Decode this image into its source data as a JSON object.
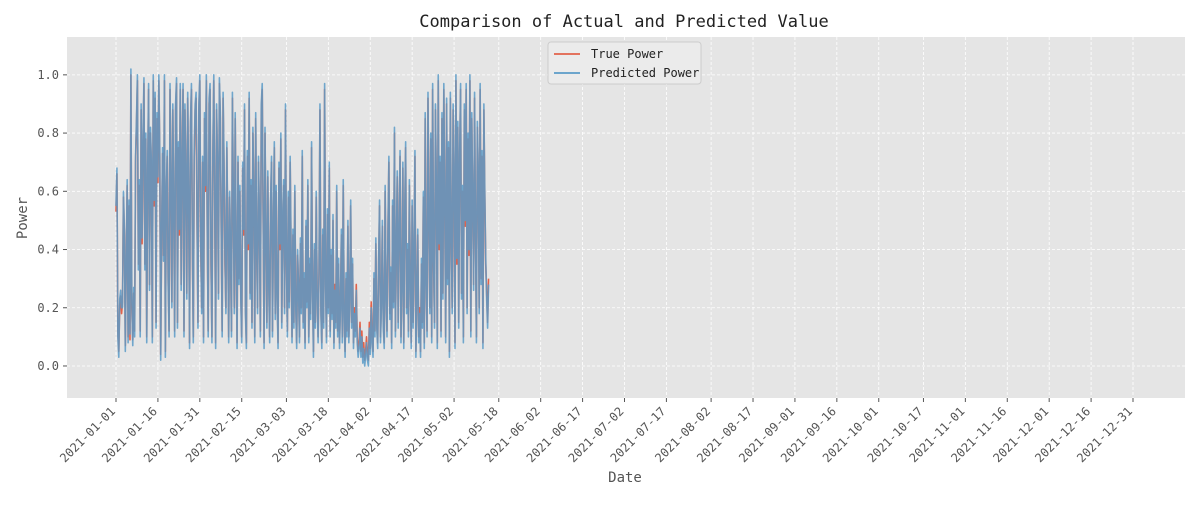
{
  "chart_data": {
    "type": "line",
    "title": "Comparison of Actual and Predicted Value",
    "xlabel": "Date",
    "ylabel": "Power",
    "xlim": [
      "2021-01-01",
      "2021-12-31"
    ],
    "ylim": [
      -0.11,
      1.13
    ],
    "grid": true,
    "legend_position": "top-center",
    "x_ticks": [
      "2021-01-01",
      "2021-01-16",
      "2021-01-31",
      "2021-02-15",
      "2021-03-03",
      "2021-03-18",
      "2021-04-02",
      "2021-04-17",
      "2021-05-02",
      "2021-05-18",
      "2021-06-02",
      "2021-06-17",
      "2021-07-02",
      "2021-07-17",
      "2021-08-02",
      "2021-08-17",
      "2021-09-01",
      "2021-09-16",
      "2021-10-01",
      "2021-10-17",
      "2021-11-01",
      "2021-11-16",
      "2021-12-01",
      "2021-12-16",
      "2021-12-31"
    ],
    "y_ticks": [
      "0.0",
      "0.2",
      "0.4",
      "0.6",
      "0.8",
      "1.0"
    ],
    "y_tick_values": [
      0.0,
      0.2,
      0.4,
      0.6,
      0.8,
      1.0
    ],
    "samples_per_day": 3,
    "series": [
      {
        "name": "True Power",
        "color": "#e2624a",
        "values": [
          0.53,
          0.66,
          0.12,
          0.05,
          0.21,
          0.24,
          0.18,
          0.22,
          0.58,
          0.45,
          0.07,
          0.35,
          0.62,
          0.1,
          0.55,
          0.09,
          1.0,
          0.2,
          0.09,
          0.25,
          0.12,
          0.7,
          0.83,
          0.98,
          0.35,
          0.62,
          0.12,
          0.88,
          0.42,
          0.75,
          0.97,
          0.35,
          0.78,
          0.1,
          0.65,
          0.95,
          0.28,
          0.8,
          0.68,
          0.1,
          0.98,
          0.55,
          0.92,
          0.15,
          0.85,
          0.63,
          0.98,
          0.72,
          0.04,
          0.45,
          0.73,
          0.38,
          0.98,
          0.05,
          0.58,
          0.72,
          0.3,
          0.12,
          0.95,
          0.62,
          0.22,
          0.88,
          0.54,
          0.12,
          0.88,
          0.97,
          0.15,
          0.75,
          0.45,
          0.95,
          0.28,
          0.7,
          0.95,
          0.12,
          0.88,
          0.65,
          0.25,
          0.92,
          0.58,
          0.08,
          0.82,
          0.95,
          0.4,
          0.1,
          0.72,
          0.88,
          0.92,
          0.5,
          0.15,
          0.88,
          0.98,
          0.4,
          0.2,
          0.7,
          0.1,
          0.85,
          0.6,
          0.98,
          0.45,
          0.12,
          0.9,
          0.95,
          0.35,
          0.1,
          0.72,
          0.98,
          0.55,
          0.08,
          0.88,
          0.68,
          0.25,
          0.97,
          0.85,
          0.45,
          0.12,
          0.92,
          0.68,
          0.35,
          0.2,
          0.75,
          0.45,
          0.1,
          0.58,
          0.38,
          0.12,
          0.92,
          0.55,
          0.2,
          0.85,
          0.38,
          0.08,
          0.7,
          0.3,
          0.6,
          0.25,
          0.1,
          0.68,
          0.45,
          0.88,
          0.2,
          0.08,
          0.72,
          0.4,
          0.92,
          0.25,
          0.62,
          0.15,
          0.8,
          0.58,
          0.1,
          0.85,
          0.4,
          0.2,
          0.7,
          0.5,
          0.12,
          0.88,
          0.95,
          0.5,
          0.08,
          0.8,
          0.42,
          0.15,
          0.65,
          0.3,
          0.1,
          0.55,
          0.7,
          0.12,
          0.45,
          0.75,
          0.18,
          0.6,
          0.25,
          0.08,
          0.68,
          0.4,
          0.78,
          0.15,
          0.5,
          0.62,
          0.2,
          0.88,
          0.35,
          0.12,
          0.58,
          0.22,
          0.7,
          0.38,
          0.1,
          0.45,
          0.15,
          0.6,
          0.22,
          0.08,
          0.38,
          0.28,
          0.1,
          0.42,
          0.2,
          0.72,
          0.15,
          0.3,
          0.08,
          0.48,
          0.22,
          0.62,
          0.1,
          0.35,
          0.18,
          0.75,
          0.28,
          0.05,
          0.4,
          0.15,
          0.58,
          0.25,
          0.1,
          0.32,
          0.88,
          0.2,
          0.08,
          0.45,
          0.15,
          0.95,
          0.3,
          0.1,
          0.52,
          0.2,
          0.68,
          0.12,
          0.38,
          0.18,
          0.5,
          0.08,
          0.28,
          0.15,
          0.6,
          0.12,
          0.35,
          0.08,
          0.22,
          0.45,
          0.1,
          0.62,
          0.18,
          0.05,
          0.3,
          0.12,
          0.48,
          0.1,
          0.25,
          0.55,
          0.15,
          0.35,
          0.08,
          0.2,
          0.12,
          0.28,
          0.1,
          0.05,
          0.08,
          0.15,
          0.05,
          0.12,
          0.03,
          0.08,
          0.02,
          0.05,
          0.1,
          0.04,
          0.02,
          0.15,
          0.06,
          0.22,
          0.1,
          0.05,
          0.3,
          0.12,
          0.42,
          0.15,
          0.08,
          0.35,
          0.55,
          0.1,
          0.22,
          0.48,
          0.15,
          0.08,
          0.6,
          0.25,
          0.12,
          0.45,
          0.7,
          0.18,
          0.32,
          0.08,
          0.55,
          0.22,
          0.8,
          0.12,
          0.38,
          0.65,
          0.15,
          0.45,
          0.72,
          0.1,
          0.28,
          0.68,
          0.08,
          0.5,
          0.75,
          0.2,
          0.4,
          0.12,
          0.62,
          0.3,
          0.08,
          0.55,
          0.15,
          0.38,
          0.72,
          0.05,
          0.25,
          0.45,
          0.1,
          0.2,
          0.05,
          0.35,
          0.15,
          0.58,
          0.08,
          0.85,
          0.3,
          0.12,
          0.92,
          0.5,
          0.2,
          0.78,
          0.1,
          0.95,
          0.35,
          0.15,
          0.88,
          0.6,
          0.08,
          0.98,
          0.4,
          0.7,
          0.12,
          0.85,
          0.25,
          0.95,
          0.55,
          0.1,
          0.9,
          0.3,
          0.75,
          0.05,
          0.92,
          0.45,
          0.2,
          0.88,
          0.65,
          0.08,
          0.98,
          0.35,
          0.82,
          0.15,
          0.72,
          0.95,
          0.25,
          0.6,
          0.1,
          0.88,
          0.48,
          0.95,
          0.2,
          0.78,
          0.38,
          0.98,
          0.12,
          0.85,
          0.55,
          0.28,
          0.92,
          0.45,
          0.1,
          0.82,
          0.65,
          0.2,
          0.95,
          0.3,
          0.72,
          0.08,
          0.88,
          0.58,
          0.35,
          0.25,
          0.15,
          0.3
        ]
      },
      {
        "name": "Predicted Power",
        "color": "#5a9bc8",
        "values": [
          0.55,
          0.68,
          0.1,
          0.03,
          0.23,
          0.26,
          0.2,
          0.2,
          0.6,
          0.47,
          0.05,
          0.37,
          0.64,
          0.08,
          0.57,
          0.11,
          1.02,
          0.22,
          0.07,
          0.27,
          0.1,
          0.72,
          0.85,
          1.0,
          0.33,
          0.64,
          0.1,
          0.9,
          0.44,
          0.77,
          0.99,
          0.33,
          0.8,
          0.08,
          0.67,
          0.97,
          0.26,
          0.82,
          0.7,
          0.08,
          1.0,
          0.57,
          0.94,
          0.13,
          0.87,
          0.65,
          1.0,
          0.74,
          0.02,
          0.47,
          0.75,
          0.36,
          1.0,
          0.03,
          0.6,
          0.74,
          0.28,
          0.1,
          0.97,
          0.64,
          0.2,
          0.9,
          0.56,
          0.1,
          0.9,
          0.99,
          0.13,
          0.77,
          0.47,
          0.97,
          0.26,
          0.72,
          0.97,
          0.1,
          0.9,
          0.67,
          0.23,
          0.94,
          0.6,
          0.06,
          0.84,
          0.97,
          0.42,
          0.08,
          0.74,
          0.9,
          0.94,
          0.52,
          0.13,
          0.9,
          1.0,
          0.42,
          0.18,
          0.72,
          0.08,
          0.87,
          0.62,
          1.0,
          0.47,
          0.1,
          0.92,
          0.97,
          0.37,
          0.08,
          0.74,
          1.0,
          0.57,
          0.06,
          0.9,
          0.7,
          0.23,
          0.99,
          0.87,
          0.47,
          0.1,
          0.94,
          0.7,
          0.37,
          0.18,
          0.77,
          0.47,
          0.08,
          0.6,
          0.4,
          0.1,
          0.94,
          0.57,
          0.18,
          0.87,
          0.4,
          0.06,
          0.72,
          0.28,
          0.62,
          0.23,
          0.08,
          0.7,
          0.47,
          0.9,
          0.18,
          0.06,
          0.74,
          0.42,
          0.94,
          0.23,
          0.64,
          0.13,
          0.82,
          0.6,
          0.08,
          0.87,
          0.42,
          0.18,
          0.72,
          0.52,
          0.1,
          0.9,
          0.97,
          0.52,
          0.06,
          0.82,
          0.44,
          0.13,
          0.67,
          0.28,
          0.08,
          0.57,
          0.72,
          0.1,
          0.47,
          0.77,
          0.16,
          0.62,
          0.23,
          0.06,
          0.7,
          0.42,
          0.8,
          0.13,
          0.52,
          0.64,
          0.18,
          0.9,
          0.37,
          0.1,
          0.6,
          0.2,
          0.72,
          0.4,
          0.08,
          0.47,
          0.13,
          0.62,
          0.2,
          0.06,
          0.4,
          0.26,
          0.08,
          0.44,
          0.18,
          0.74,
          0.13,
          0.32,
          0.06,
          0.5,
          0.2,
          0.64,
          0.08,
          0.37,
          0.16,
          0.77,
          0.26,
          0.03,
          0.42,
          0.13,
          0.6,
          0.23,
          0.08,
          0.34,
          0.9,
          0.18,
          0.06,
          0.47,
          0.13,
          0.97,
          0.28,
          0.08,
          0.54,
          0.18,
          0.7,
          0.1,
          0.4,
          0.16,
          0.52,
          0.06,
          0.26,
          0.13,
          0.62,
          0.1,
          0.37,
          0.06,
          0.2,
          0.47,
          0.08,
          0.64,
          0.16,
          0.03,
          0.32,
          0.1,
          0.5,
          0.08,
          0.23,
          0.57,
          0.13,
          0.37,
          0.06,
          0.18,
          0.1,
          0.26,
          0.08,
          0.03,
          0.06,
          0.13,
          0.03,
          0.1,
          0.01,
          0.06,
          0.0,
          0.03,
          0.08,
          0.02,
          0.0,
          0.13,
          0.04,
          0.2,
          0.08,
          0.03,
          0.32,
          0.1,
          0.44,
          0.13,
          0.06,
          0.37,
          0.57,
          0.08,
          0.2,
          0.5,
          0.13,
          0.06,
          0.62,
          0.23,
          0.1,
          0.47,
          0.72,
          0.16,
          0.34,
          0.06,
          0.57,
          0.2,
          0.82,
          0.1,
          0.4,
          0.67,
          0.13,
          0.47,
          0.74,
          0.08,
          0.26,
          0.7,
          0.06,
          0.52,
          0.77,
          0.18,
          0.42,
          0.1,
          0.64,
          0.28,
          0.06,
          0.57,
          0.13,
          0.4,
          0.74,
          0.03,
          0.23,
          0.47,
          0.08,
          0.18,
          0.03,
          0.37,
          0.13,
          0.6,
          0.06,
          0.87,
          0.28,
          0.1,
          0.94,
          0.52,
          0.18,
          0.8,
          0.08,
          0.97,
          0.37,
          0.13,
          0.9,
          0.62,
          0.06,
          1.0,
          0.42,
          0.72,
          0.1,
          0.87,
          0.23,
          0.97,
          0.57,
          0.08,
          0.92,
          0.28,
          0.77,
          0.03,
          0.94,
          0.47,
          0.18,
          0.9,
          0.67,
          0.06,
          1.0,
          0.37,
          0.84,
          0.13,
          0.74,
          0.97,
          0.23,
          0.62,
          0.08,
          0.9,
          0.5,
          0.97,
          0.18,
          0.8,
          0.4,
          1.0,
          0.1,
          0.87,
          0.57,
          0.26,
          0.94,
          0.47,
          0.08,
          0.84,
          0.67,
          0.18,
          0.97,
          0.28,
          0.74,
          0.06,
          0.9,
          0.6,
          0.37,
          0.23,
          0.13,
          0.28
        ]
      }
    ]
  }
}
